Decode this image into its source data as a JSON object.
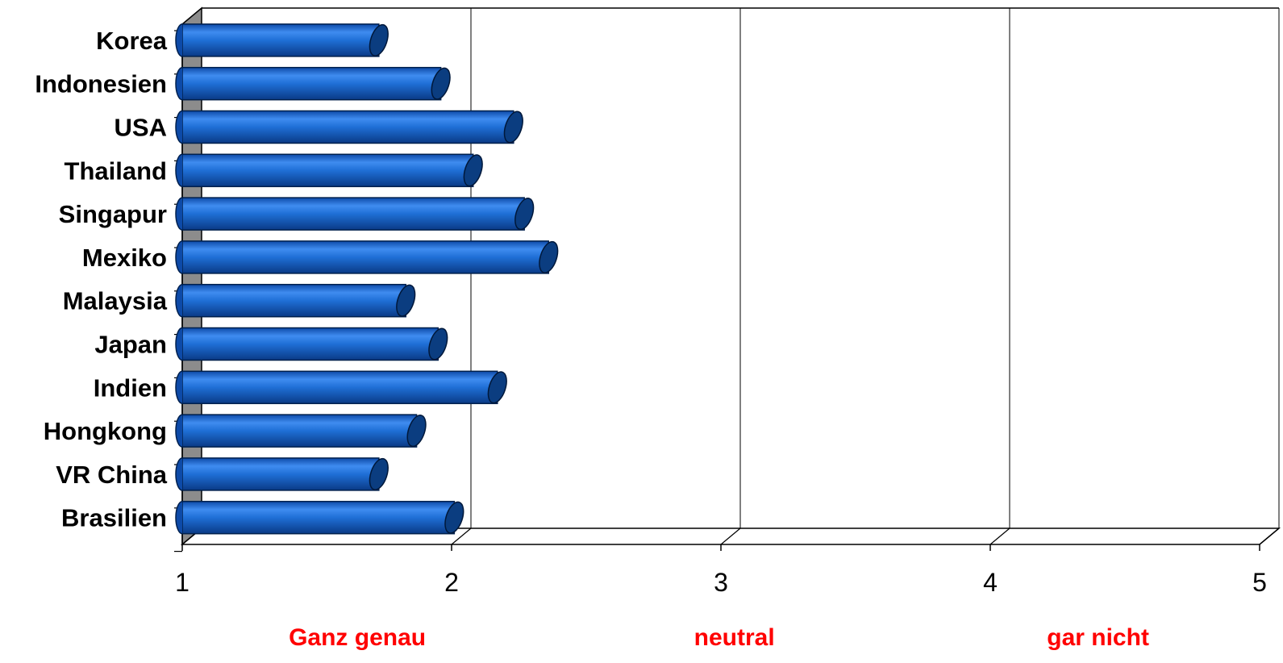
{
  "chart_data": {
    "type": "bar",
    "orientation": "horizontal",
    "style": "3d-cylinder",
    "categories": [
      "Korea",
      "Indonesien",
      "USA",
      "Thailand",
      "Singapur",
      "Mexiko",
      "Malaysia",
      "Japan",
      "Indien",
      "Hongkong",
      "VR China",
      "Brasilien"
    ],
    "values": [
      1.73,
      1.96,
      2.23,
      2.08,
      2.27,
      2.36,
      1.83,
      1.95,
      2.17,
      1.87,
      1.73,
      2.01
    ],
    "xlim": [
      1,
      5
    ],
    "xticks": [
      "1",
      "2",
      "3",
      "4",
      "5"
    ],
    "grid": true,
    "title": "",
    "xlabel": "",
    "ylabel": "",
    "annotations": [
      {
        "text": "Ganz genau",
        "x": 1.65
      },
      {
        "text": "neutral",
        "x": 3.05
      },
      {
        "text": "gar nicht",
        "x": 4.4
      }
    ],
    "colors": {
      "bar": "#1f6fd6",
      "bar_dark": "#0a3a86",
      "bar_cap": "#0b3d80",
      "wall": "#8c8c8c",
      "annotation": "#ff0000",
      "grid": "#000000"
    }
  }
}
